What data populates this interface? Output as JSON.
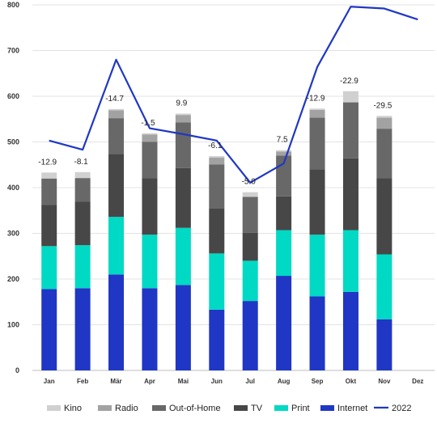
{
  "chart_data": {
    "type": "bar",
    "stacked": true,
    "categories": [
      "Jan",
      "Feb",
      "Mär",
      "Apr",
      "Mai",
      "Jun",
      "Jul",
      "Aug",
      "Sep",
      "Okt",
      "Nov",
      "Dez"
    ],
    "ylim": [
      0,
      800
    ],
    "yticks": [
      0,
      100,
      200,
      300,
      400,
      500,
      600,
      700,
      800
    ],
    "grid": true,
    "legend_position": "bottom",
    "series": [
      {
        "name": "Internet",
        "color": "#1f37c4",
        "values": [
          178,
          180,
          210,
          180,
          187,
          133,
          152,
          207,
          162,
          172,
          112,
          null
        ]
      },
      {
        "name": "Print",
        "color": "#00d9c3",
        "values": [
          94,
          94,
          126,
          117,
          125,
          123,
          88,
          100,
          135,
          135,
          142,
          null
        ]
      },
      {
        "name": "TV",
        "color": "#474747",
        "values": [
          90,
          95,
          138,
          124,
          131,
          98,
          61,
          74,
          143,
          157,
          167,
          null
        ]
      },
      {
        "name": "Out-of-Home",
        "color": "#686868",
        "values": [
          58,
          52,
          78,
          79,
          100,
          97,
          79,
          89,
          113,
          122,
          108,
          null
        ]
      },
      {
        "name": "Radio",
        "color": "#a2a2a2",
        "values": [
          0,
          0,
          17,
          16,
          16,
          15,
          0,
          9,
          17,
          2,
          24,
          null
        ]
      },
      {
        "name": "Kino",
        "color": "#d0d0d0",
        "values": [
          13,
          13,
          3,
          3,
          3,
          3,
          10,
          3,
          3,
          23,
          4,
          null
        ]
      }
    ],
    "line_series": {
      "name": "2022",
      "color": "#1f37c4",
      "values": [
        503,
        483,
        680,
        530,
        517,
        503,
        411,
        453,
        664,
        796,
        792,
        768
      ]
    },
    "annotations": [
      "-12.9",
      "-8.1",
      "-14.7",
      "-1.5",
      "9.9",
      "-6.1",
      "-5.0",
      "7.5",
      "-12.9",
      "-22.9",
      "-29.5",
      ""
    ]
  }
}
